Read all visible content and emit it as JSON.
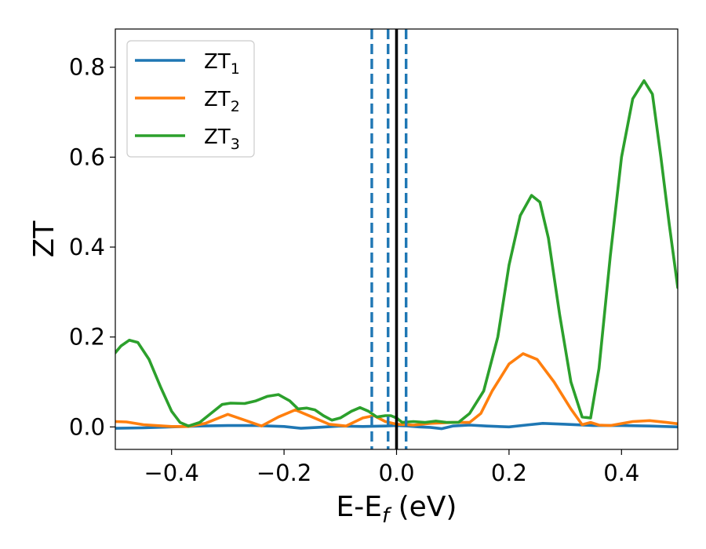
{
  "chart_data": {
    "type": "line",
    "xlabel": "E-E",
    "xlabel_sub": "f",
    "xlabel_unit": " (eV)",
    "ylabel": "ZT",
    "xlim": [
      -0.5,
      0.5
    ],
    "ylim": [
      -0.05,
      0.885
    ],
    "xticks": [
      -0.4,
      -0.2,
      0.0,
      0.2,
      0.4
    ],
    "xtick_labels": [
      "−0.4",
      "−0.2",
      "0.0",
      "0.2",
      "0.4"
    ],
    "yticks": [
      0.0,
      0.2,
      0.4,
      0.6,
      0.8
    ],
    "ytick_labels": [
      "0.0",
      "0.2",
      "0.4",
      "0.6",
      "0.8"
    ],
    "legend_position": "top-left",
    "vlines": [
      {
        "x": -0.044,
        "style": "dashed",
        "color": "#1f77b4"
      },
      {
        "x": -0.015,
        "style": "dashed",
        "color": "#1f77b4"
      },
      {
        "x": 0.0,
        "style": "solid",
        "color": "#000000"
      },
      {
        "x": 0.017,
        "style": "dashed",
        "color": "#1f77b4"
      }
    ],
    "series": [
      {
        "name": "ZT",
        "sub": "1",
        "color": "#1f77b4",
        "points": [
          [
            -0.5,
            -0.003
          ],
          [
            -0.45,
            -0.002
          ],
          [
            -0.4,
            0.0
          ],
          [
            -0.35,
            0.002
          ],
          [
            -0.3,
            0.003
          ],
          [
            -0.25,
            0.003
          ],
          [
            -0.2,
            0.001
          ],
          [
            -0.17,
            -0.003
          ],
          [
            -0.14,
            -0.001
          ],
          [
            -0.1,
            0.002
          ],
          [
            -0.06,
            0.001
          ],
          [
            -0.02,
            0.002
          ],
          [
            0.0,
            0.003
          ],
          [
            0.02,
            0.002
          ],
          [
            0.04,
            0.0
          ],
          [
            0.06,
            -0.001
          ],
          [
            0.08,
            -0.004
          ],
          [
            0.1,
            0.002
          ],
          [
            0.13,
            0.004
          ],
          [
            0.16,
            0.002
          ],
          [
            0.2,
            0.0
          ],
          [
            0.23,
            0.004
          ],
          [
            0.26,
            0.008
          ],
          [
            0.3,
            0.006
          ],
          [
            0.35,
            0.003
          ],
          [
            0.4,
            0.003
          ],
          [
            0.45,
            0.002
          ],
          [
            0.5,
            0.0
          ]
        ]
      },
      {
        "name": "ZT",
        "sub": "2",
        "color": "#ff7f0e",
        "points": [
          [
            -0.5,
            0.012
          ],
          [
            -0.48,
            0.011
          ],
          [
            -0.45,
            0.005
          ],
          [
            -0.4,
            0.001
          ],
          [
            -0.37,
            0.001
          ],
          [
            -0.34,
            0.008
          ],
          [
            -0.3,
            0.028
          ],
          [
            -0.27,
            0.015
          ],
          [
            -0.24,
            0.002
          ],
          [
            -0.21,
            0.022
          ],
          [
            -0.18,
            0.038
          ],
          [
            -0.15,
            0.022
          ],
          [
            -0.12,
            0.006
          ],
          [
            -0.09,
            0.002
          ],
          [
            -0.06,
            0.02
          ],
          [
            -0.04,
            0.025
          ],
          [
            -0.02,
            0.012
          ],
          [
            0.0,
            0.006
          ],
          [
            0.03,
            0.004
          ],
          [
            0.06,
            0.008
          ],
          [
            0.1,
            0.01
          ],
          [
            0.13,
            0.01
          ],
          [
            0.15,
            0.03
          ],
          [
            0.17,
            0.08
          ],
          [
            0.2,
            0.14
          ],
          [
            0.225,
            0.163
          ],
          [
            0.25,
            0.15
          ],
          [
            0.28,
            0.1
          ],
          [
            0.31,
            0.04
          ],
          [
            0.33,
            0.005
          ],
          [
            0.345,
            0.01
          ],
          [
            0.36,
            0.004
          ],
          [
            0.38,
            0.003
          ],
          [
            0.42,
            0.012
          ],
          [
            0.45,
            0.014
          ],
          [
            0.48,
            0.01
          ],
          [
            0.5,
            0.007
          ]
        ]
      },
      {
        "name": "ZT",
        "sub": "3",
        "color": "#2ca02c",
        "points": [
          [
            -0.5,
            0.165
          ],
          [
            -0.49,
            0.18
          ],
          [
            -0.475,
            0.193
          ],
          [
            -0.46,
            0.188
          ],
          [
            -0.44,
            0.15
          ],
          [
            -0.42,
            0.09
          ],
          [
            -0.4,
            0.035
          ],
          [
            -0.385,
            0.01
          ],
          [
            -0.37,
            0.002
          ],
          [
            -0.35,
            0.01
          ],
          [
            -0.33,
            0.03
          ],
          [
            -0.31,
            0.05
          ],
          [
            -0.295,
            0.053
          ],
          [
            -0.27,
            0.052
          ],
          [
            -0.25,
            0.058
          ],
          [
            -0.23,
            0.068
          ],
          [
            -0.21,
            0.072
          ],
          [
            -0.19,
            0.058
          ],
          [
            -0.175,
            0.04
          ],
          [
            -0.16,
            0.042
          ],
          [
            -0.145,
            0.038
          ],
          [
            -0.13,
            0.025
          ],
          [
            -0.115,
            0.015
          ],
          [
            -0.1,
            0.02
          ],
          [
            -0.08,
            0.035
          ],
          [
            -0.065,
            0.043
          ],
          [
            -0.05,
            0.035
          ],
          [
            -0.035,
            0.022
          ],
          [
            -0.02,
            0.025
          ],
          [
            -0.01,
            0.025
          ],
          [
            0.0,
            0.02
          ],
          [
            0.01,
            0.01
          ],
          [
            0.03,
            0.012
          ],
          [
            0.05,
            0.01
          ],
          [
            0.07,
            0.013
          ],
          [
            0.09,
            0.01
          ],
          [
            0.11,
            0.01
          ],
          [
            0.13,
            0.03
          ],
          [
            0.155,
            0.08
          ],
          [
            0.18,
            0.2
          ],
          [
            0.2,
            0.36
          ],
          [
            0.22,
            0.47
          ],
          [
            0.24,
            0.515
          ],
          [
            0.255,
            0.5
          ],
          [
            0.27,
            0.42
          ],
          [
            0.29,
            0.25
          ],
          [
            0.31,
            0.1
          ],
          [
            0.33,
            0.022
          ],
          [
            0.345,
            0.02
          ],
          [
            0.36,
            0.13
          ],
          [
            0.38,
            0.38
          ],
          [
            0.4,
            0.6
          ],
          [
            0.42,
            0.73
          ],
          [
            0.44,
            0.77
          ],
          [
            0.455,
            0.74
          ],
          [
            0.47,
            0.6
          ],
          [
            0.485,
            0.45
          ],
          [
            0.5,
            0.31
          ]
        ]
      }
    ]
  }
}
